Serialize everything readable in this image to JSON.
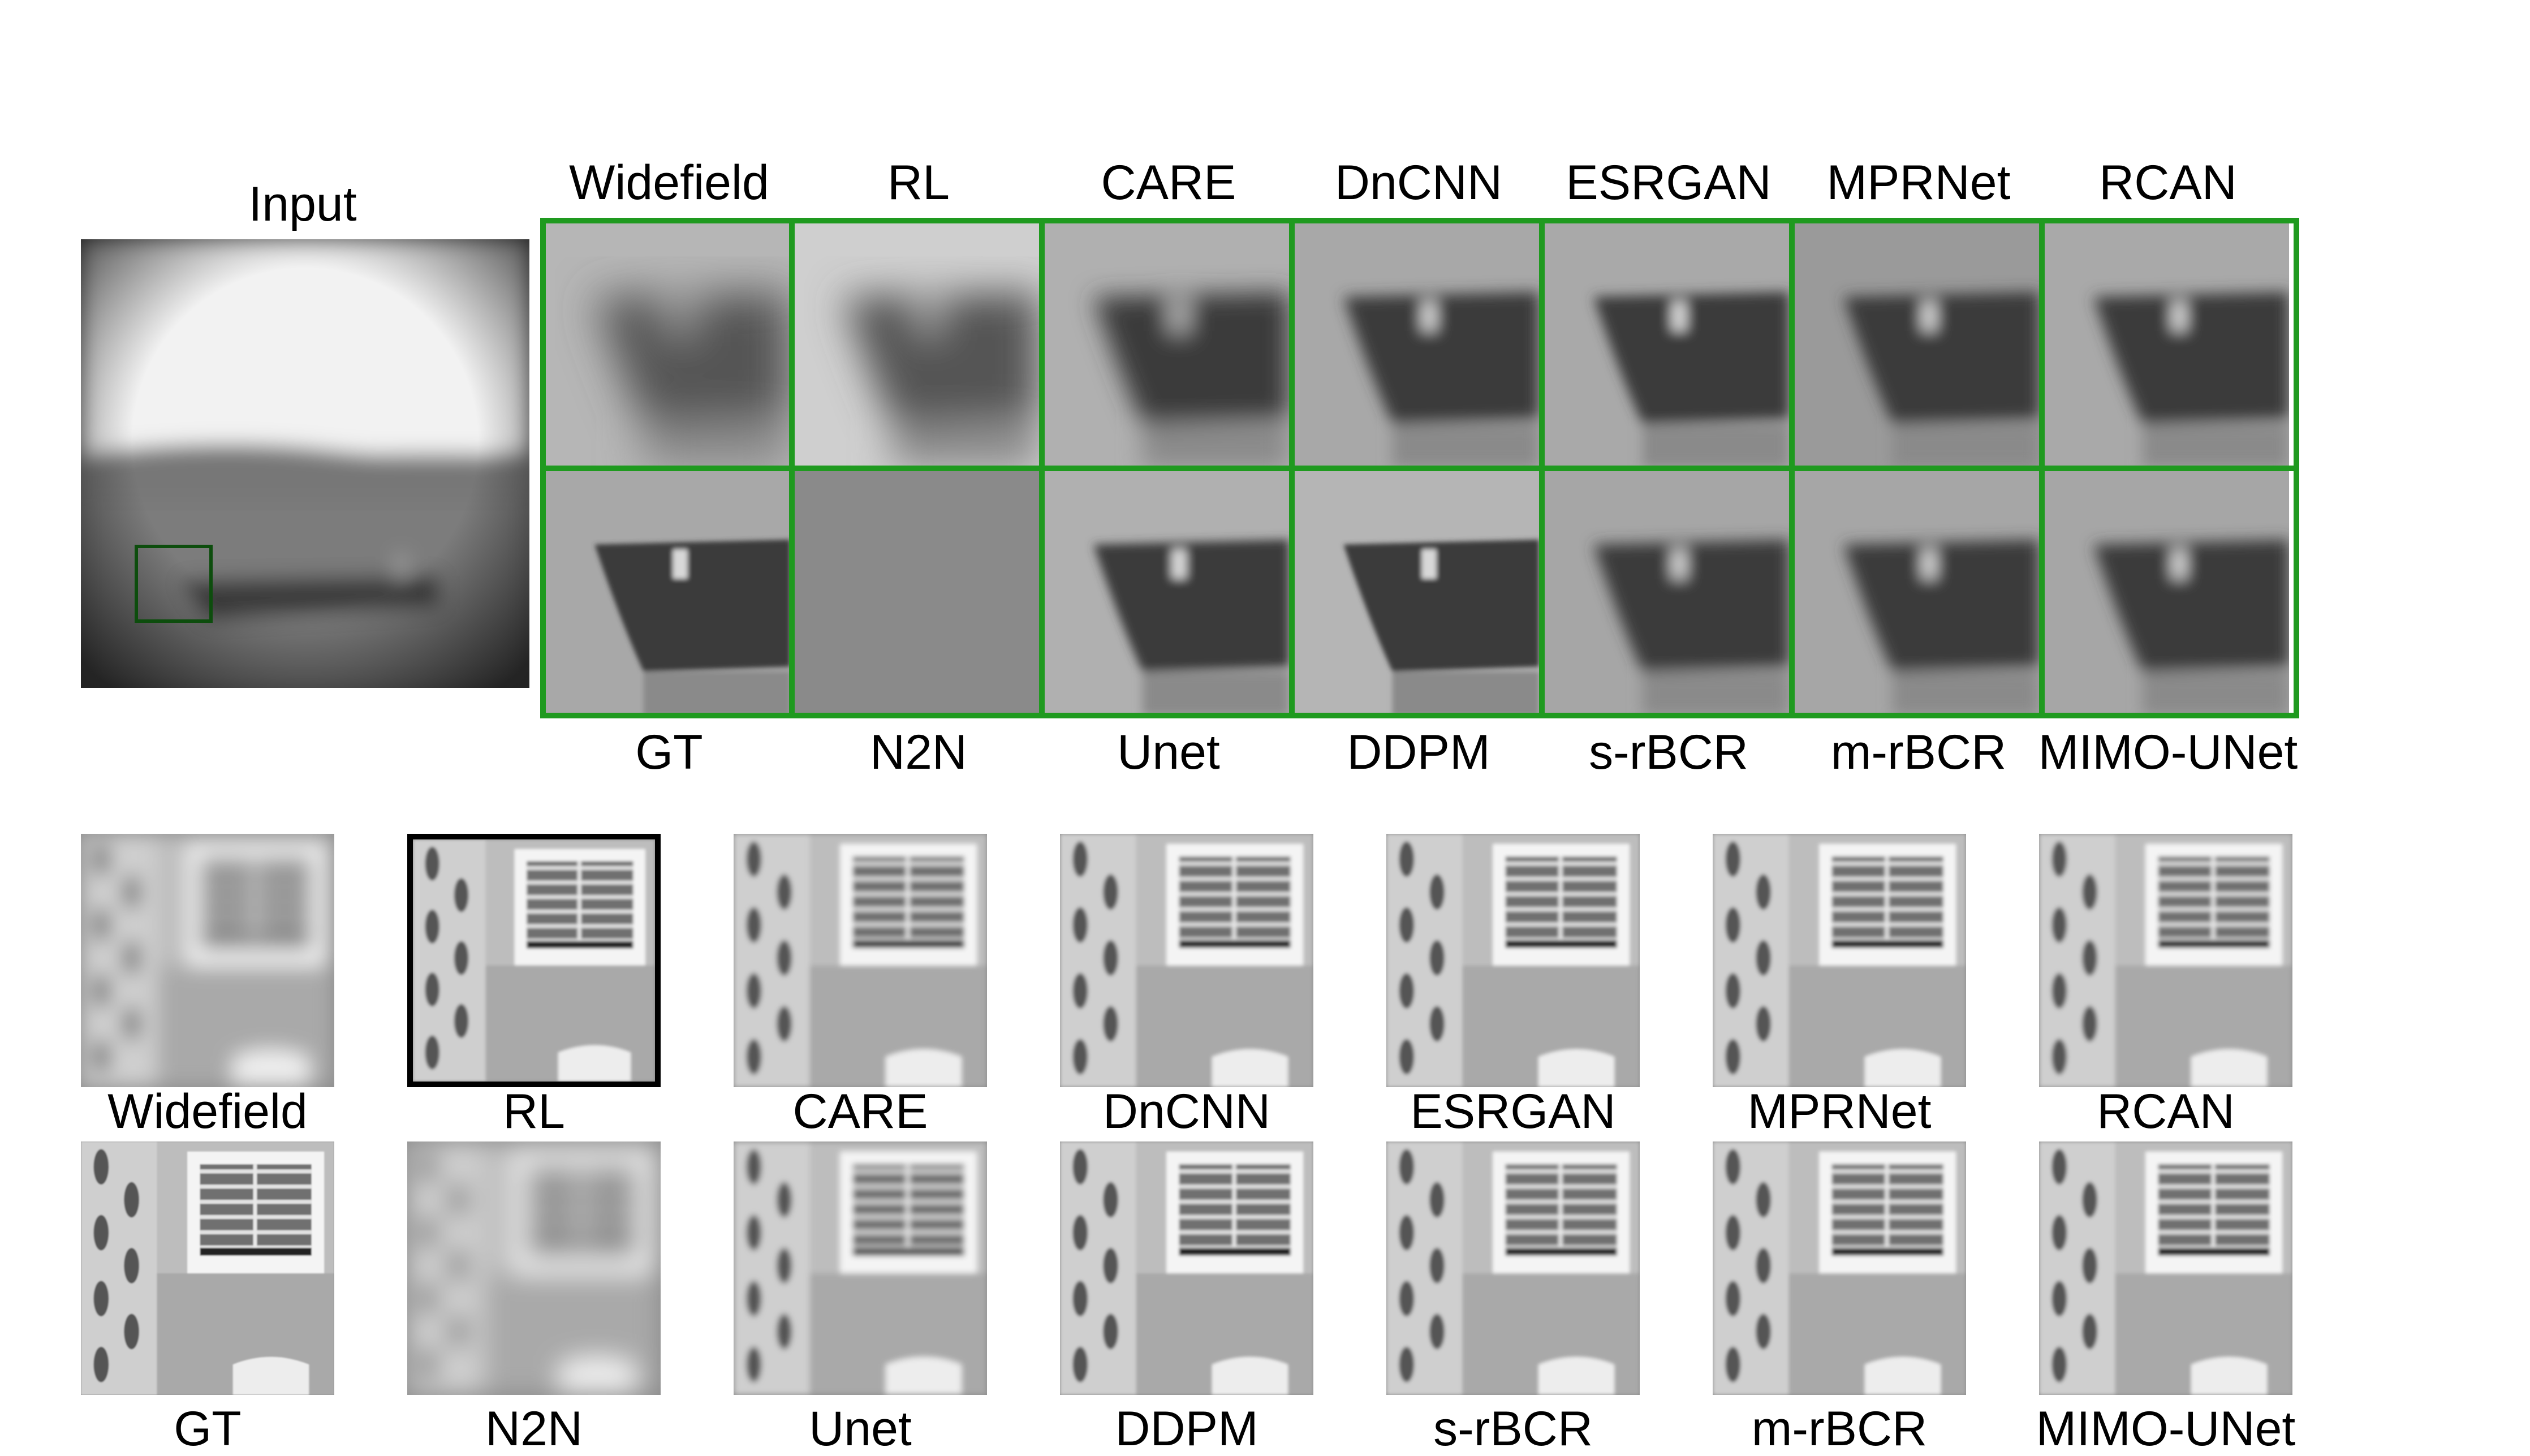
{
  "input_label": "Input",
  "top_header_labels": [
    "Widefield",
    "RL",
    "CARE",
    "DnCNN",
    "ESRGAN",
    "MPRNet",
    "RCAN"
  ],
  "top_footer_labels": [
    "GT",
    "N2N",
    "Unet",
    "DDPM",
    "s-rBCR",
    "m-rBCR",
    "MIMO-UNet"
  ],
  "bottom_row1_labels": [
    "Widefield",
    "RL",
    "CARE",
    "DnCNN",
    "ESRGAN",
    "MPRNet",
    "RCAN"
  ],
  "bottom_row2_labels": [
    "GT",
    "N2N",
    "Unet",
    "DDPM",
    "s-rBCR",
    "m-rBCR",
    "MIMO-UNet"
  ],
  "colors": {
    "crop_border": "#1f9a1f",
    "roi_box": "#0d4d0d"
  }
}
